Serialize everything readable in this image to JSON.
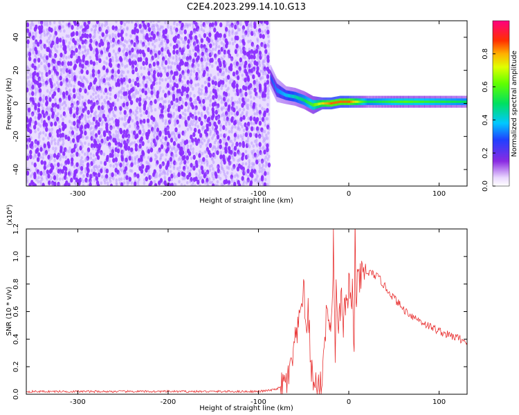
{
  "figure": {
    "title": "C2E4.2023.299.14.10.G13"
  },
  "colors": {
    "noise": "#8b2cff",
    "noise_light": "#d9c2ff",
    "snr_line": "#e83030",
    "axis": "#000000"
  },
  "colorbar": {
    "label": "Normalized spectral amplitude",
    "ticks": [
      "0.0",
      "0.2",
      "0.4",
      "0.6",
      "0.8"
    ],
    "range": [
      0,
      1
    ],
    "colormap": "rainbow (purple-blue-cyan-green-yellow-red-magenta)"
  },
  "chart_data": [
    {
      "type": "heatmap",
      "xlabel": "Height of straight line (km)",
      "ylabel": "Frequency (Hz)",
      "xlim": [
        -357,
        131
      ],
      "ylim": [
        -50,
        50
      ],
      "x_ticks": [
        "-300",
        "-200",
        "-100",
        "0",
        "100"
      ],
      "y_ticks": [
        "40",
        "20",
        "0",
        "-20",
        "-40"
      ],
      "noise_region_x": [
        -357,
        -87
      ],
      "signal_band": {
        "x": [
          -87,
          -80,
          -70,
          -60,
          -50,
          -40,
          -30,
          -20,
          -10,
          0,
          20,
          60,
          131
        ],
        "center_hz": [
          16,
          8,
          5,
          4,
          2,
          -1,
          0,
          0,
          1,
          1,
          1,
          1,
          1
        ],
        "half_width_hz": [
          4,
          4,
          3,
          3,
          3,
          3,
          2,
          2,
          2,
          2,
          2,
          2,
          2
        ],
        "amplitude": [
          0.3,
          0.35,
          0.4,
          0.45,
          0.5,
          0.6,
          0.75,
          0.85,
          0.85,
          0.85,
          0.5,
          0.6,
          0.5
        ]
      }
    },
    {
      "type": "line",
      "xlabel": "Height of straight line (km)",
      "ylabel": "SNR (10 * v/v)",
      "y_multiplier": "(x10⁴)",
      "xlim": [
        -357,
        131
      ],
      "ylim": [
        0,
        1.2
      ],
      "x_ticks": [
        "-300",
        "-200",
        "-100",
        "0",
        "100"
      ],
      "y_ticks": [
        "0.0",
        "0.2",
        "0.4",
        "0.6",
        "0.8",
        "1.0",
        "1.2"
      ],
      "series": [
        {
          "x": [
            -357,
            -240,
            -120,
            -100,
            -85,
            -75,
            -70,
            -65,
            -60,
            -55,
            -50,
            -48,
            -45,
            -42,
            -40,
            -38,
            -35,
            -32,
            -30,
            -28,
            -25,
            -22,
            -20,
            -18,
            -17,
            -15,
            -14,
            -12,
            -10,
            -8,
            -6,
            -5,
            -3,
            -1,
            0,
            2,
            4,
            6,
            7,
            8,
            9,
            10,
            12,
            15,
            20,
            25,
            30,
            35,
            40,
            45,
            50,
            55,
            60,
            70,
            80,
            90,
            100,
            110,
            120,
            131
          ],
          "y": [
            0.02,
            0.02,
            0.02,
            0.02,
            0.03,
            0.05,
            0.08,
            0.15,
            0.35,
            0.5,
            0.82,
            0.45,
            0.6,
            0.25,
            0.1,
            0.05,
            0.1,
            0.04,
            0.07,
            0.3,
            0.55,
            0.6,
            0.35,
            0.8,
            1.1,
            0.2,
            0.9,
            0.4,
            0.55,
            0.75,
            0.4,
            0.6,
            0.7,
            0.55,
            0.8,
            0.7,
            0.75,
            0.3,
            1.2,
            0.65,
            0.78,
            0.8,
            0.83,
            0.86,
            0.88,
            0.88,
            0.86,
            0.83,
            0.78,
            0.74,
            0.7,
            0.66,
            0.62,
            0.57,
            0.53,
            0.49,
            0.46,
            0.43,
            0.41,
            0.38
          ]
        }
      ]
    }
  ]
}
